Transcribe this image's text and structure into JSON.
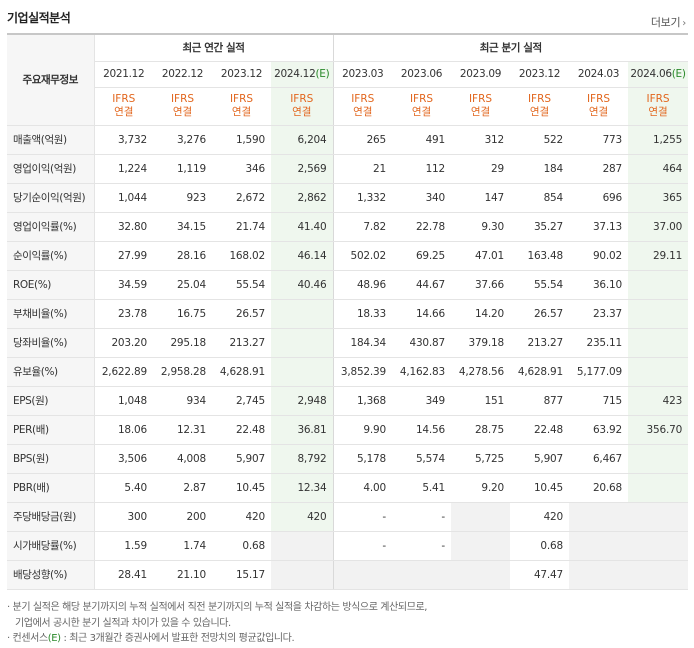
{
  "section_title": "기업실적분석",
  "more_label": "더보기",
  "more_arrow": "›",
  "header": {
    "row_label": "주요재무정보",
    "annual_group": "최근 연간 실적",
    "quarter_group": "최근 분기 실적",
    "periods": [
      "2021.12",
      "2022.12",
      "2023.12",
      "2024.12(E)",
      "2023.03",
      "2023.06",
      "2023.09",
      "2023.12",
      "2024.03",
      "2024.06(E)"
    ],
    "ifrs_top": "IFRS",
    "ifrs_bottom": "연결"
  },
  "rows": [
    {
      "label": "매출액(억원)",
      "values": [
        "3,732",
        "3,276",
        "1,590",
        "6,204",
        "265",
        "491",
        "312",
        "522",
        "773",
        "1,255"
      ]
    },
    {
      "label": "영업이익(억원)",
      "values": [
        "1,224",
        "1,119",
        "346",
        "2,569",
        "21",
        "112",
        "29",
        "184",
        "287",
        "464"
      ]
    },
    {
      "label": "당기순이익(억원)",
      "values": [
        "1,044",
        "923",
        "2,672",
        "2,862",
        "1,332",
        "340",
        "147",
        "854",
        "696",
        "365"
      ]
    },
    {
      "label": "영업이익률(%)",
      "values": [
        "32.80",
        "34.15",
        "21.74",
        "41.40",
        "7.82",
        "22.78",
        "9.30",
        "35.27",
        "37.13",
        "37.00"
      ]
    },
    {
      "label": "순이익률(%)",
      "values": [
        "27.99",
        "28.16",
        "168.02",
        "46.14",
        "502.02",
        "69.25",
        "47.01",
        "163.48",
        "90.02",
        "29.11"
      ]
    },
    {
      "label": "ROE(%)",
      "values": [
        "34.59",
        "25.04",
        "55.54",
        "40.46",
        "48.96",
        "44.67",
        "37.66",
        "55.54",
        "36.10",
        ""
      ]
    },
    {
      "label": "부채비율(%)",
      "values": [
        "23.78",
        "16.75",
        "26.57",
        "",
        "18.33",
        "14.66",
        "14.20",
        "26.57",
        "23.37",
        ""
      ]
    },
    {
      "label": "당좌비율(%)",
      "values": [
        "203.20",
        "295.18",
        "213.27",
        "",
        "184.34",
        "430.87",
        "379.18",
        "213.27",
        "235.11",
        ""
      ]
    },
    {
      "label": "유보율(%)",
      "values": [
        "2,622.89",
        "2,958.28",
        "4,628.91",
        "",
        "3,852.39",
        "4,162.83",
        "4,278.56",
        "4,628.91",
        "5,177.09",
        ""
      ]
    },
    {
      "label": "EPS(원)",
      "values": [
        "1,048",
        "934",
        "2,745",
        "2,948",
        "1,368",
        "349",
        "151",
        "877",
        "715",
        "423"
      ]
    },
    {
      "label": "PER(배)",
      "values": [
        "18.06",
        "12.31",
        "22.48",
        "36.81",
        "9.90",
        "14.56",
        "28.75",
        "22.48",
        "63.92",
        "356.70"
      ]
    },
    {
      "label": "BPS(원)",
      "values": [
        "3,506",
        "4,008",
        "5,907",
        "8,792",
        "5,178",
        "5,574",
        "5,725",
        "5,907",
        "6,467",
        ""
      ]
    },
    {
      "label": "PBR(배)",
      "values": [
        "5.40",
        "2.87",
        "10.45",
        "12.34",
        "4.00",
        "5.41",
        "9.20",
        "10.45",
        "20.68",
        ""
      ]
    },
    {
      "label": "주당배당금(원)",
      "values": [
        "300",
        "200",
        "420",
        "420",
        "-",
        "-",
        "",
        "420",
        "",
        ""
      ]
    },
    {
      "label": "시가배당률(%)",
      "values": [
        "1.59",
        "1.74",
        "0.68",
        "",
        "-",
        "-",
        "",
        "0.68",
        "",
        ""
      ]
    },
    {
      "label": "배당성향(%)",
      "values": [
        "28.41",
        "21.10",
        "15.17",
        "",
        "",
        "",
        "",
        "47.47",
        "",
        ""
      ]
    }
  ],
  "notes": {
    "line1": "· 분기 실적은 해당 분기까지의 누적 실적에서 직전 분기까지의 누적 실적을 차감하는 방식으로 계산되므로,",
    "line2": "기업에서 공시한 분기 실적과 차이가 있을 수 있습니다.",
    "line3_prefix": "· 컨센서스",
    "line3_mark": "(E)",
    "line3_suffix": " : 최근 3개월간 증권사에서 발표한 전망치의 평균값입니다."
  },
  "colors": {
    "ifrs_text": "#e2661d",
    "estimate_bg": "#eff7ee",
    "estimate_mark": "#2b8a2b",
    "label_bg": "#f6f6f6"
  }
}
